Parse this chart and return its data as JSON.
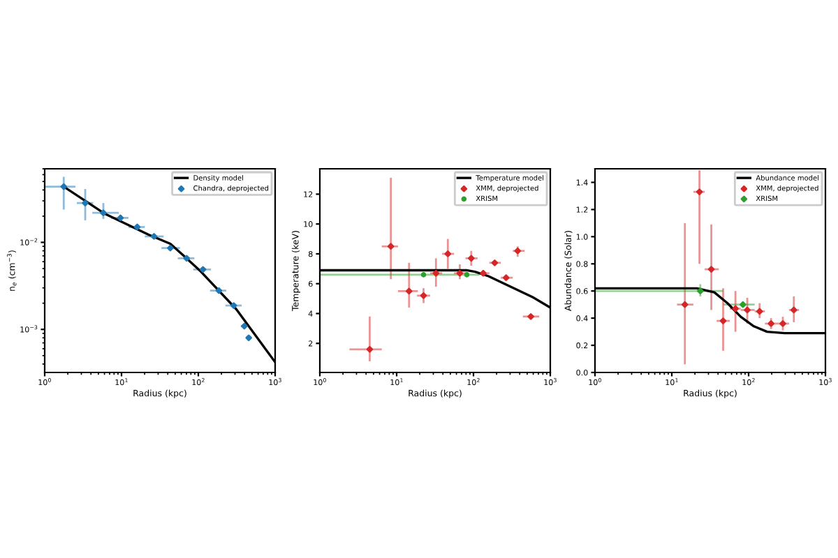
{
  "chart_data": [
    {
      "type": "scatter",
      "xlabel": "Radius (kpc)",
      "ylabel": "n$_{e}$ (cm$^{−3}$)",
      "log": "xy",
      "legend": "top right",
      "grid": false,
      "xlim": [
        1,
        1000
      ],
      "ylim": [
        0.00032,
        0.07
      ],
      "xticks": [
        {
          "value": 1,
          "label": "10$^{0}$"
        },
        {
          "value": 10,
          "label": "10$^{1}$"
        },
        {
          "value": 100,
          "label": "10$^{2}$"
        },
        {
          "value": 1000,
          "label": "10$^{3}$"
        }
      ],
      "yticks": [
        {
          "value": 0.001,
          "label": "10$^{−3}$"
        },
        {
          "value": 0.01,
          "label": "10$^{−2}$"
        }
      ],
      "series": [
        {
          "name": "Density model",
          "type": "line",
          "color": "#000000",
          "marker": "none",
          "x": [
            1.77,
            5.95,
            22.3,
            43.2,
            64,
            109,
            313,
            1000
          ],
          "values": [
            0.0437,
            0.0215,
            0.0123,
            0.00964,
            0.00706,
            0.00458,
            0.0017,
            0.00042
          ]
        },
        {
          "name": "Chandra, deprojected",
          "color": "#1f77b4",
          "marker": "diamond",
          "x": [
            1.77,
            3.37,
            5.8,
            9.7,
            16.0,
            26.5,
            43.2,
            70.4,
            115,
            185,
            289,
            397,
            453
          ],
          "values": [
            0.0437,
            0.0283,
            0.0218,
            0.0191,
            0.015,
            0.0117,
            0.0086,
            0.00656,
            0.00488,
            0.00279,
            0.00188,
            0.00109,
            0.0008
          ],
          "xerrors": [
            [
              1.0,
              2.52
            ],
            [
              2.62,
              4.28
            ],
            [
              4.17,
              9.2
            ],
            [
              7.3,
              12.3
            ],
            [
              12.3,
              20.1
            ],
            [
              20.1,
              35.4
            ],
            [
              33.1,
              57.7
            ],
            [
              54,
              89
            ],
            [
              86,
              146
            ],
            [
              142,
              231
            ],
            [
              225,
              367
            ],
            [
              357,
              436
            ],
            null
          ],
          "errors": [
            [
              0.0238,
              0.0566
            ],
            [
              0.0179,
              0.041
            ],
            [
              0.0186,
              0.0283
            ],
            [
              0.0177,
              0.0205
            ],
            null,
            null,
            null,
            null,
            null,
            null,
            null,
            null,
            null
          ]
        }
      ]
    },
    {
      "type": "scatter",
      "xlabel": "Radius (kpc)",
      "ylabel": "Temperature (keV)",
      "log": "x",
      "legend": "top right",
      "grid": false,
      "xlim": [
        1,
        1000
      ],
      "ylim": [
        0.05,
        13.7
      ],
      "xticks": [
        {
          "value": 1,
          "label": "10$^{0}$"
        },
        {
          "value": 10,
          "label": "10$^{1}$"
        },
        {
          "value": 100,
          "label": "10$^{2}$"
        },
        {
          "value": 1000,
          "label": "10$^{3}$"
        }
      ],
      "yticks": [
        2,
        4,
        6,
        8,
        10,
        12
      ],
      "series": [
        {
          "name": "Temperature model",
          "type": "line",
          "color": "#000000",
          "marker": "none",
          "x": [
            1,
            81,
            105,
            157,
            304,
            589,
            1000
          ],
          "values": [
            6.9,
            6.9,
            6.8,
            6.5,
            5.8,
            5.1,
            4.4
          ]
        },
        {
          "name": "XMM, deprojected",
          "color": "#d62728",
          "marker": "diamond",
          "x": [
            4.46,
            8.4,
            14.5,
            22.4,
            32.5,
            46.4,
            66.4,
            93.6,
            134,
            189,
            266,
            376,
            558
          ],
          "values": [
            1.6,
            8.5,
            5.5,
            5.2,
            6.7,
            8.0,
            6.7,
            7.7,
            6.7,
            7.4,
            6.4,
            8.2,
            3.8
          ],
          "xerrors": [
            [
              2.43,
              6.4
            ],
            [
              6.4,
              10.4
            ],
            [
              10.4,
              18.9
            ],
            [
              18.4,
              27.3
            ],
            [
              27.3,
              39.1
            ],
            [
              39.1,
              55.9
            ],
            [
              55.9,
              78.8
            ],
            [
              78.8,
              113
            ],
            [
              113,
              161
            ],
            [
              161,
              227
            ],
            [
              227,
              325
            ],
            [
              325,
              464
            ],
            [
              440,
              718
            ]
          ],
          "errors": [
            [
              0.8,
              3.8
            ],
            [
              6.3,
              13.1
            ],
            [
              4.4,
              7.4
            ],
            [
              4.7,
              5.7
            ],
            [
              5.8,
              7.7
            ],
            [
              7.0,
              9.0
            ],
            [
              6.3,
              7.3
            ],
            [
              7.2,
              8.2
            ],
            null,
            null,
            null,
            [
              7.8,
              8.5
            ],
            null
          ]
        },
        {
          "name": "XRISM",
          "color": "#2ca02c",
          "marker": "circle",
          "x": [
            22.4,
            82
          ],
          "values": [
            6.6,
            6.6
          ],
          "xerrors": [
            [
              1,
              62.8
            ],
            [
              62.8,
              120
            ]
          ],
          "errors": [
            null,
            null
          ]
        }
      ]
    },
    {
      "type": "scatter",
      "xlabel": "Radius (kpc)",
      "ylabel": "Abundance (Solar)",
      "log": "x",
      "legend": "top right",
      "grid": false,
      "xlim": [
        1,
        1000
      ],
      "ylim": [
        0,
        1.5
      ],
      "xticks": [
        {
          "value": 1,
          "label": "10$^{0}$"
        },
        {
          "value": 10,
          "label": "10$^{1}$"
        },
        {
          "value": 100,
          "label": "10$^{2}$"
        },
        {
          "value": 1000,
          "label": "10$^{3}$"
        }
      ],
      "yticks": [
        {
          "value": 0,
          "label": "0.0"
        },
        0.2,
        0.4,
        0.6,
        0.8,
        {
          "value": 1,
          "label": "1.0"
        },
        1.2,
        1.4
      ],
      "series": [
        {
          "name": "Abundance model",
          "type": "line",
          "color": "#000000",
          "marker": "none",
          "x": [
            1,
            21.2,
            35.8,
            53.2,
            78.9,
            117,
            174,
            294,
            1000
          ],
          "values": [
            0.62,
            0.62,
            0.59,
            0.51,
            0.41,
            0.34,
            0.3,
            0.29,
            0.29
          ]
        },
        {
          "name": "XMM, deprojected",
          "color": "#d62728",
          "marker": "diamond",
          "x": [
            14.8,
            22.9,
            32.7,
            46.6,
            67.4,
            96,
            139,
            196,
            279,
            388
          ],
          "values": [
            0.5,
            1.33,
            0.76,
            0.38,
            0.47,
            0.46,
            0.45,
            0.36,
            0.36,
            0.46
          ],
          "xerrors": [
            [
              11.7,
              19.1
            ],
            [
              19.1,
              26.8
            ],
            [
              26.8,
              40.9
            ],
            [
              38.3,
              56.8
            ],
            [
              56.8,
              78.9
            ],
            [
              78.9,
              120
            ],
            [
              120,
              163
            ],
            [
              163,
              235
            ],
            [
              235,
              336
            ],
            [
              336,
              454
            ]
          ],
          "errors": [
            [
              0.06,
              1.1
            ],
            [
              0.8,
              1.49
            ],
            [
              0.46,
              1.09
            ],
            [
              0.16,
              0.62
            ],
            [
              0.3,
              0.6
            ],
            [
              0.36,
              0.55
            ],
            [
              0.4,
              0.51
            ],
            [
              0.32,
              0.4
            ],
            [
              0.31,
              0.41
            ],
            [
              0.37,
              0.56
            ]
          ]
        },
        {
          "name": "XRISM",
          "color": "#2ca02c",
          "marker": "diamond",
          "x": [
            23.5,
            84.3
          ],
          "values": [
            0.6,
            0.5
          ],
          "xerrors": [
            [
              1,
              46.6
            ],
            [
              46.6,
              120
            ]
          ],
          "errors": [
            [
              0.56,
              0.65
            ],
            null
          ]
        }
      ]
    }
  ]
}
